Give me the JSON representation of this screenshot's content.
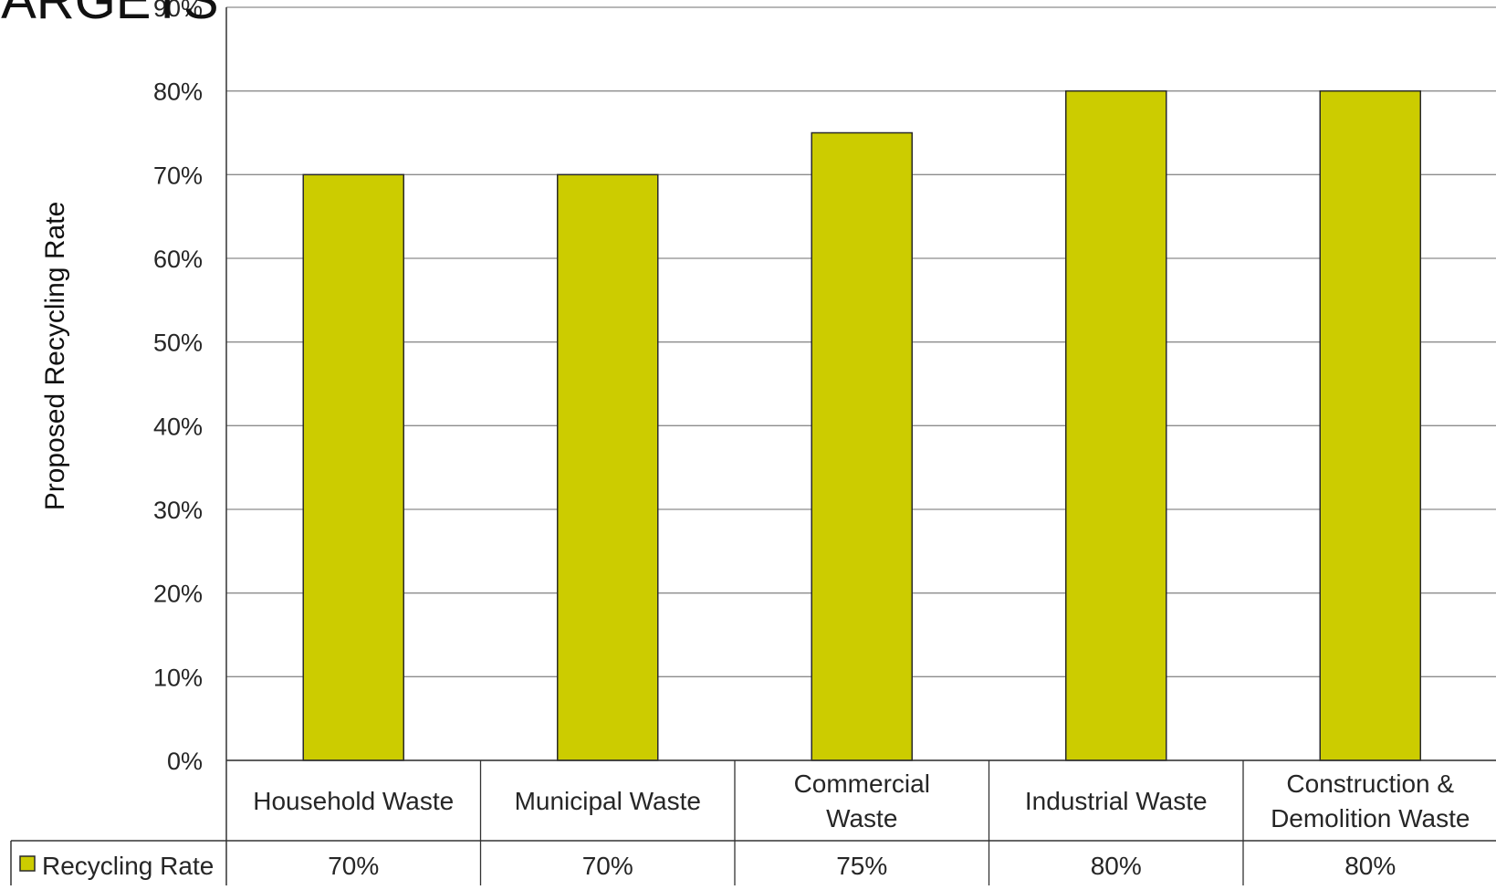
{
  "chart_data": {
    "type": "bar",
    "title": "TARGETS",
    "ylabel": "Proposed Recycling Rate",
    "xlabel": "",
    "ylim": [
      0,
      90
    ],
    "yticks": [
      "0%",
      "10%",
      "20%",
      "30%",
      "40%",
      "50%",
      "60%",
      "70%",
      "80%",
      "90%"
    ],
    "grid": true,
    "categories": [
      "Household Waste",
      "Municipal Waste",
      "Commercial Waste",
      "Industrial Waste",
      "Construction & Demolition Waste"
    ],
    "category_lines": [
      [
        "Household Waste"
      ],
      [
        "Municipal Waste"
      ],
      [
        "Commercial",
        "Waste"
      ],
      [
        "Industrial Waste"
      ],
      [
        "Construction &",
        "Demolition Waste"
      ]
    ],
    "series": [
      {
        "name": "Recycling Rate",
        "values": [
          70,
          70,
          75,
          80,
          80
        ],
        "value_labels": [
          "70%",
          "70%",
          "75%",
          "80%",
          "80%"
        ],
        "color": "#cccc00"
      }
    ],
    "legend": "data-table-left"
  }
}
